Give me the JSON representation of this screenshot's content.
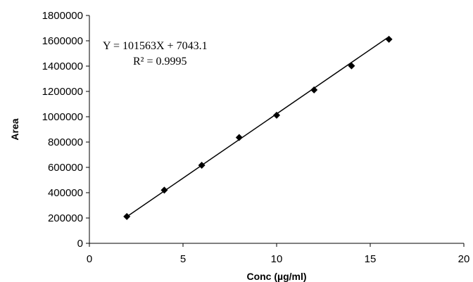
{
  "chart_data": {
    "type": "scatter",
    "title": "",
    "xlabel": "Conc (µg/ml)",
    "ylabel": "Area",
    "xlim": [
      0,
      20
    ],
    "ylim": [
      0,
      1800000
    ],
    "x_ticks": [
      "0",
      "5",
      "10",
      "15",
      "20"
    ],
    "y_ticks": [
      "0",
      "200000",
      "400000",
      "600000",
      "800000",
      "1000000",
      "1200000",
      "1400000",
      "1600000",
      "1800000"
    ],
    "x_tick_values": [
      0,
      5,
      10,
      15,
      20
    ],
    "y_tick_values": [
      0,
      200000,
      400000,
      600000,
      800000,
      1000000,
      1200000,
      1400000,
      1600000,
      1800000
    ],
    "grid": false,
    "series": [
      {
        "marker": "diamond",
        "color": "#000000",
        "points": [
          {
            "x": 2,
            "y": 212000
          },
          {
            "x": 4,
            "y": 420000
          },
          {
            "x": 6,
            "y": 617000
          },
          {
            "x": 8,
            "y": 836000
          },
          {
            "x": 10,
            "y": 1012000
          },
          {
            "x": 12,
            "y": 1212000
          },
          {
            "x": 14,
            "y": 1402000
          },
          {
            "x": 16,
            "y": 1612000
          }
        ]
      }
    ],
    "trendline": {
      "slope": 101563,
      "intercept": 7043.1,
      "x_range": [
        2,
        16
      ]
    },
    "annotations": {
      "equation": "Y = 101563X + 7043.1",
      "r_squared": "R² = 0.9995"
    }
  }
}
